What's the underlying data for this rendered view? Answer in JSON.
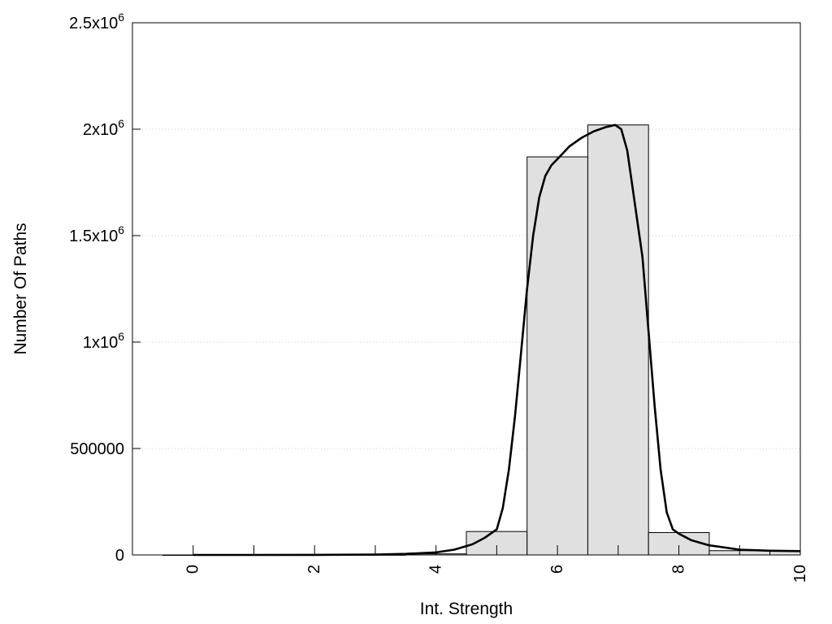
{
  "chart_data": {
    "type": "bar",
    "xlabel": "Int. Strength",
    "ylabel": "Number Of Paths",
    "xlim": [
      -1,
      10
    ],
    "ylim": [
      0,
      2500000
    ],
    "grid": true,
    "x_ticks": [
      {
        "value": 0,
        "label": "0"
      },
      {
        "value": 2,
        "label": "2"
      },
      {
        "value": 4,
        "label": "4"
      },
      {
        "value": 6,
        "label": "6"
      },
      {
        "value": 8,
        "label": "8"
      },
      {
        "value": 10,
        "label": "10"
      }
    ],
    "y_ticks": [
      {
        "value": 0,
        "base": "0",
        "exp": ""
      },
      {
        "value": 500000,
        "base": "500000",
        "exp": ""
      },
      {
        "value": 1000000,
        "base": "1x10",
        "exp": "6"
      },
      {
        "value": 1500000,
        "base": "1.5x10",
        "exp": "6"
      },
      {
        "value": 2000000,
        "base": "2x10",
        "exp": "6"
      },
      {
        "value": 2500000,
        "base": "2.5x10",
        "exp": "6"
      }
    ],
    "bin_width": 1,
    "bars": [
      {
        "x": 0,
        "value": 0
      },
      {
        "x": 1,
        "value": 0
      },
      {
        "x": 2,
        "value": 0
      },
      {
        "x": 3,
        "value": 500
      },
      {
        "x": 4,
        "value": 5000
      },
      {
        "x": 5,
        "value": 110000
      },
      {
        "x": 6,
        "value": 1870000
      },
      {
        "x": 7,
        "value": 2020000
      },
      {
        "x": 8,
        "value": 105000
      },
      {
        "x": 9,
        "value": 20000
      },
      {
        "x": 10,
        "value": 18000
      }
    ],
    "curve": {
      "x": [
        0,
        1,
        2,
        3,
        3.5,
        4,
        4.3,
        4.6,
        4.8,
        5.0,
        5.1,
        5.2,
        5.3,
        5.4,
        5.5,
        5.6,
        5.7,
        5.8,
        5.9,
        6.0,
        6.2,
        6.4,
        6.6,
        6.8,
        6.95,
        7.05,
        7.15,
        7.25,
        7.4,
        7.5,
        7.6,
        7.7,
        7.8,
        7.9,
        8.0,
        8.2,
        8.5,
        9.0,
        9.5,
        10.0
      ],
      "y": [
        0,
        0,
        500,
        2000,
        5000,
        12000,
        25000,
        50000,
        80000,
        120000,
        220000,
        400000,
        650000,
        950000,
        1250000,
        1500000,
        1680000,
        1780000,
        1830000,
        1860000,
        1920000,
        1960000,
        1990000,
        2010000,
        2020000,
        2000000,
        1900000,
        1700000,
        1400000,
        1050000,
        700000,
        400000,
        200000,
        120000,
        100000,
        70000,
        45000,
        25000,
        20000,
        18000
      ]
    }
  }
}
